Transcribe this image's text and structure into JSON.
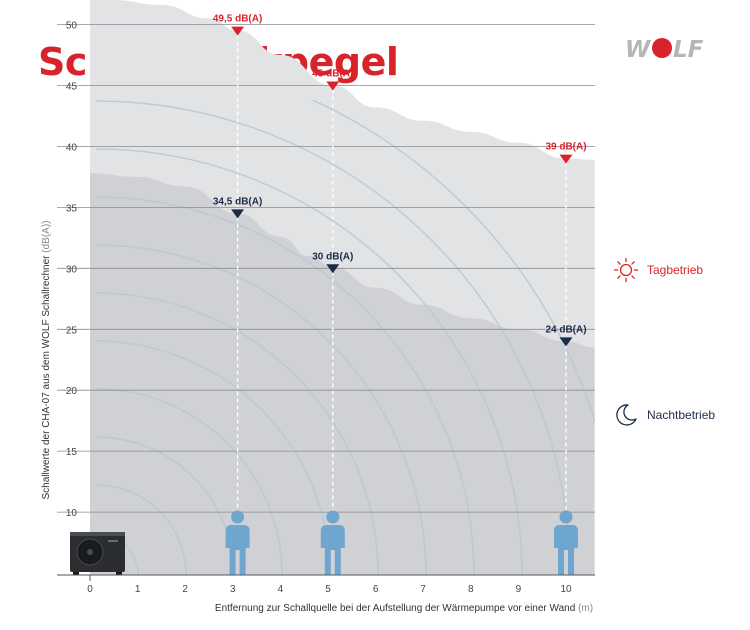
{
  "title": "Schalldruckpegel",
  "logo_text": "WOLF",
  "colors": {
    "brand_red": "#d8232a",
    "navy": "#1d2b4a",
    "person_blue": "#6ea6cf",
    "day_area": "#e2e3e5",
    "night_area": "#cfd1d4",
    "arc": "#b6c8d6",
    "grid": "#8a8c8f"
  },
  "legend": {
    "day": {
      "icon": "sun-icon",
      "label": "Tagbetrieb"
    },
    "night": {
      "icon": "moon-icon",
      "label": "Nachtbetrieb"
    }
  },
  "chart_data": {
    "type": "area",
    "ylabel": "Schallwerte der CHA-07 aus dem WOLF Schallrechner",
    "ylabel_unit": "(dB(A))",
    "xlabel": "Entfernung zur Schallquelle bei der Aufstellung der Wärmepumpe vor einer Wand",
    "xlabel_unit": "(m)",
    "xlim": [
      0,
      10.6
    ],
    "ylim": [
      0,
      52.5
    ],
    "xticks": [
      "0",
      "1",
      "2",
      "3",
      "4",
      "5",
      "6",
      "7",
      "8",
      "9",
      "10"
    ],
    "yticks": [
      "10",
      "15",
      "20",
      "25",
      "30",
      "35",
      "40",
      "45",
      "50"
    ],
    "ytick_values": [
      10,
      15,
      20,
      25,
      30,
      35,
      40,
      45,
      50
    ],
    "grid": true,
    "series": [
      {
        "name": "Tagbetrieb",
        "curve": [
          [
            0,
            52.5
          ],
          [
            0.5,
            52
          ],
          [
            1.5,
            51.6
          ],
          [
            2.5,
            50.5
          ],
          [
            3.1,
            49.5
          ],
          [
            4,
            47.5
          ],
          [
            5.1,
            45
          ],
          [
            6,
            43.2
          ],
          [
            7,
            42.1
          ],
          [
            8,
            41.2
          ],
          [
            9,
            40.3
          ],
          [
            10,
            39
          ],
          [
            10.6,
            38.9
          ]
        ],
        "markers": [
          {
            "x": 3.1,
            "value": 49.5,
            "label": "49,5 dB(A)"
          },
          {
            "x": 5.1,
            "value": 45,
            "label": "45 dB(A)"
          },
          {
            "x": 10.0,
            "value": 39,
            "label": "39 dB(A)"
          }
        ]
      },
      {
        "name": "Nachtbetrieb",
        "curve": [
          [
            0,
            37.8
          ],
          [
            1,
            37.5
          ],
          [
            2,
            36.7
          ],
          [
            3.1,
            34.5
          ],
          [
            4,
            32.6
          ],
          [
            4.6,
            31
          ],
          [
            5.1,
            30.1
          ],
          [
            6,
            28.4
          ],
          [
            7,
            27
          ],
          [
            8,
            25.9
          ],
          [
            9,
            25
          ],
          [
            10,
            24
          ],
          [
            10.6,
            23.5
          ]
        ],
        "markers": [
          {
            "x": 3.1,
            "value": 34.5,
            "label": "34,5 dB(A)"
          },
          {
            "x": 5.1,
            "value": 30,
            "label": "30 dB(A)"
          },
          {
            "x": 10.0,
            "value": 24,
            "label": "24 dB(A)"
          }
        ]
      }
    ],
    "persons_at": [
      3.1,
      5.1,
      10.0
    ]
  }
}
